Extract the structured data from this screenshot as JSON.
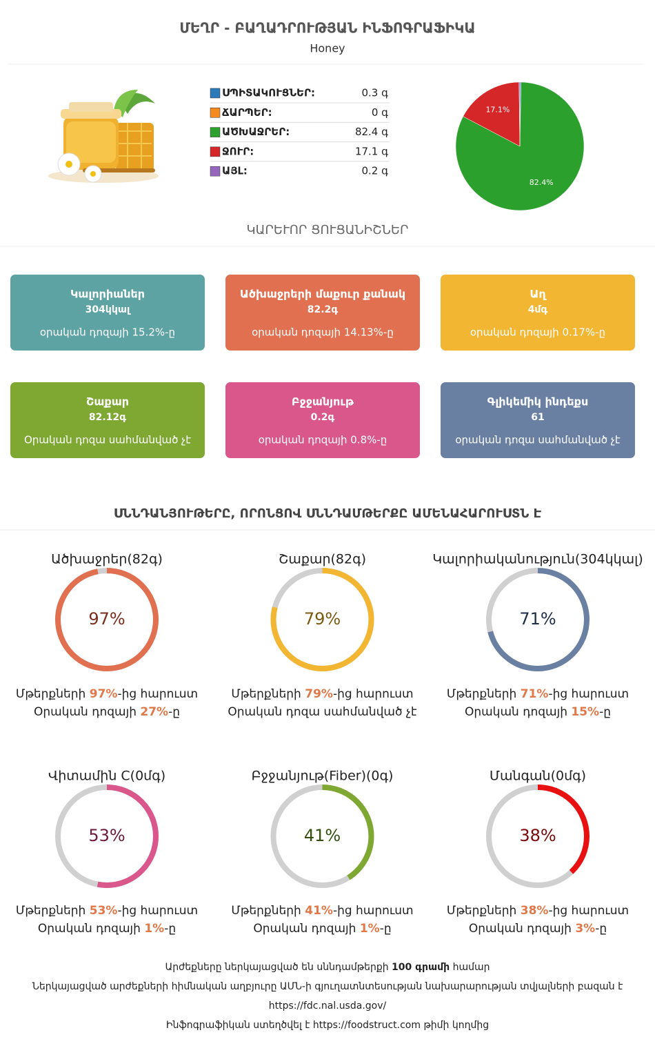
{
  "header": {
    "title": "ՄԵՂՐ - ԲԱՂԱԴՐՈՒԹՅԱՆ ԻՆՖՈԳՐԱՖԻԿԱ",
    "subtitle": "Honey"
  },
  "chart_data": {
    "type": "pie",
    "categories": [
      "ՍՊԻՏԱԿՈՒՑՆԵՐ:",
      "ՃԱՐՊԵՐ:",
      "ԱԾԽԱՋՐԵՐ:",
      "ՋՈՒՐ:",
      "ԱՅԼ:"
    ],
    "values": [
      0.3,
      0,
      82.4,
      17.1,
      0.2
    ],
    "value_labels": [
      "0.3 գ",
      "0 գ",
      "82.4 գ",
      "17.1 գ",
      "0.2 գ"
    ],
    "percent_labels": [
      null,
      null,
      "82.4%",
      "17.1%",
      null
    ],
    "colors": [
      "#2a7ab8",
      "#f58a1f",
      "#2ca02c",
      "#d62728",
      "#9467bd"
    ]
  },
  "section1": "ԿԱՐԵՒՈՐ ՑՈՒՑԱՆԻՇՆԵՐ",
  "cards": [
    {
      "name": "Կալորիաներ",
      "value": "304կկալ",
      "note": "օրական դոզայի 15.2%-ը",
      "color": "#5ea3a3"
    },
    {
      "name": "Ածխաջրերի մաքուր քանակ",
      "value": "82.2գ",
      "note": "օրական դոզայի 14.13%-ը",
      "color": "#e07050"
    },
    {
      "name": "Աղ",
      "value": "4մգ",
      "note": "օրական դոզայի 0.17%-ը",
      "color": "#f2b632"
    },
    {
      "name": "Շաքար",
      "value": "82.12գ",
      "note": "Օրական դոզա սահմանված չէ",
      "color": "#7ea832"
    },
    {
      "name": "Բջջանյութ",
      "value": "0.2գ",
      "note": "օրական դոզայի 0.8%-ը",
      "color": "#d9578a"
    },
    {
      "name": "Գլիկեմիկ ինդեքս",
      "value": "61",
      "note": "օրական դոզա սահմանված չէ",
      "color": "#6a80a3"
    }
  ],
  "section2": "ՍՆՆԴԱՆՅՈՒԹԵՐԸ, ՈՐՈՆՑՈՎ ՍՆՆԴԱՄԹԵՐՔԸ ԱՄԵՆԱՀԱՐՈՒՍՏՆ Է",
  "gauges": [
    {
      "title": "Ածխաջրեր(82գ)",
      "percent": 97,
      "percent_label": "97%",
      "color": "#e07050",
      "text_color": "#7a2e1c",
      "line1": [
        {
          "text": "Մթերքների "
        },
        {
          "text": "97%",
          "bold": true
        },
        {
          "text": "-ից հարուստ"
        }
      ],
      "line2": [
        {
          "text": "Օրական դոզայի "
        },
        {
          "text": "27%",
          "bold": true
        },
        {
          "text": "-ը"
        }
      ]
    },
    {
      "title": "Շաքար(82գ)",
      "percent": 79,
      "percent_label": "79%",
      "color": "#f2b632",
      "text_color": "#7a5a10",
      "line1": [
        {
          "text": "Մթերքների "
        },
        {
          "text": "79%",
          "bold": true
        },
        {
          "text": "-ից հարուստ"
        }
      ],
      "line2": [
        {
          "text": "Օրական դոզա սահմանված չէ"
        }
      ]
    },
    {
      "title": "Կալորիականություն(304կկալ)",
      "percent": 71,
      "percent_label": "71%",
      "color": "#6a80a3",
      "text_color": "#1f2e48",
      "line1": [
        {
          "text": "Մթերքների "
        },
        {
          "text": "71%",
          "bold": true
        },
        {
          "text": "-ից հարուստ"
        }
      ],
      "line2": [
        {
          "text": "Օրական դոզայի "
        },
        {
          "text": "15%",
          "bold": true
        },
        {
          "text": "-ը"
        }
      ]
    },
    {
      "title": "Վիտամին C(0մգ)",
      "percent": 53,
      "percent_label": "53%",
      "color": "#d9578a",
      "text_color": "#6e1a3c",
      "line1": [
        {
          "text": "Մթերքների "
        },
        {
          "text": "53%",
          "bold": true
        },
        {
          "text": "-ից հարուստ"
        }
      ],
      "line2": [
        {
          "text": "Օրական դոզայի "
        },
        {
          "text": "1%",
          "bold": true
        },
        {
          "text": "-ը"
        }
      ]
    },
    {
      "title": "Բջջանյութ(Fiber)(0գ)",
      "percent": 41,
      "percent_label": "41%",
      "color": "#7ea832",
      "text_color": "#33500e",
      "line1": [
        {
          "text": "Մթերքների "
        },
        {
          "text": "41%",
          "bold": true
        },
        {
          "text": "-ից հարուստ"
        }
      ],
      "line2": [
        {
          "text": "Օրական դոզայի "
        },
        {
          "text": "1%",
          "bold": true
        },
        {
          "text": "-ը"
        }
      ]
    },
    {
      "title": "Մանգան(0մգ)",
      "percent": 38,
      "percent_label": "38%",
      "color": "#e81010",
      "text_color": "#7a0a0a",
      "line1": [
        {
          "text": "Մթերքների "
        },
        {
          "text": "38%",
          "bold": true
        },
        {
          "text": "-ից հարուստ"
        }
      ],
      "line2": [
        {
          "text": "Օրական դոզայի "
        },
        {
          "text": "3%",
          "bold": true
        },
        {
          "text": "-ը"
        }
      ]
    }
  ],
  "footer": [
    [
      {
        "text": "Արժեքները ներկայացված են սննդամթերքի "
      },
      {
        "text": "100 գրամի",
        "bold": true
      },
      {
        "text": " համար"
      }
    ],
    [
      {
        "text": "Ներկայացված արժեքների հիմնական աղբյուրը ԱՄՆ-ի գյուղատնտեսության նախարարության տվյալների բազան է"
      }
    ],
    [
      {
        "text": "https://fdc.nal.usda.gov/"
      }
    ],
    [
      {
        "text": "Ինֆոգրաֆիկան ստեղծվել է https://foodstruct.com թիմի կողմից"
      }
    ]
  ]
}
